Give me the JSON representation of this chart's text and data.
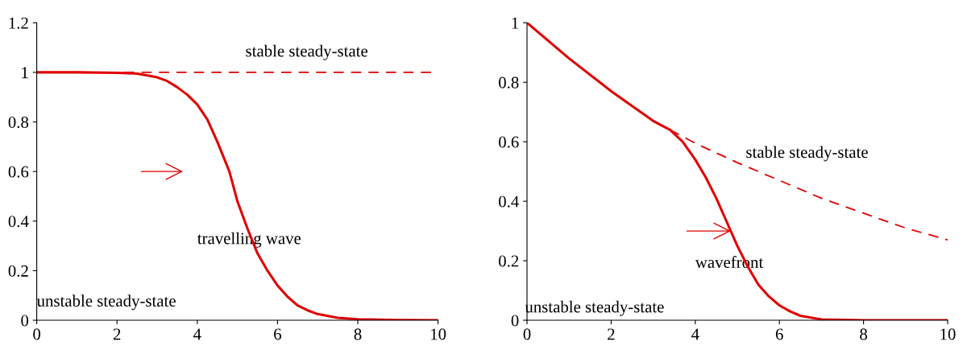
{
  "chart_data": [
    {
      "type": "line",
      "xlim": [
        0,
        10
      ],
      "ylim": [
        0,
        1.2
      ],
      "xticks": [
        0,
        2,
        4,
        6,
        8,
        10
      ],
      "yticks": [
        0,
        0.2,
        0.4,
        0.6,
        0.8,
        1,
        1.2
      ],
      "grid": false,
      "legend": false,
      "series": [
        {
          "color": "#e00000",
          "line_style": "solid",
          "x": [
            0,
            1,
            2,
            2.5,
            3,
            3.25,
            3.5,
            3.75,
            4,
            4.25,
            4.5,
            4.65,
            4.8,
            5,
            5.25,
            5.5,
            5.75,
            6,
            6.25,
            6.5,
            6.75,
            7,
            7.5,
            8,
            9,
            10
          ],
          "values": [
            1,
            1,
            0.998,
            0.995,
            0.98,
            0.965,
            0.94,
            0.91,
            0.87,
            0.81,
            0.72,
            0.66,
            0.6,
            0.48,
            0.37,
            0.27,
            0.2,
            0.14,
            0.095,
            0.06,
            0.04,
            0.025,
            0.01,
            0.004,
            0.001,
            0
          ]
        }
      ],
      "ref_lines": [
        {
          "axis": "y",
          "value": 1,
          "color": "#e00000",
          "line_style": "dashed"
        }
      ],
      "annotations": [
        "stable steady-state",
        "travelling wave",
        "unstable steady-state"
      ]
    },
    {
      "type": "line",
      "xlim": [
        0,
        10
      ],
      "ylim": [
        0,
        1
      ],
      "xticks": [
        0,
        2,
        4,
        6,
        8,
        10
      ],
      "yticks": [
        0,
        0.2,
        0.4,
        0.6,
        0.8,
        1
      ],
      "grid": false,
      "legend": false,
      "series": [
        {
          "color": "#e00000",
          "line_style": "solid",
          "x": [
            0,
            1,
            2,
            3,
            3.4,
            3.7,
            4,
            4.25,
            4.5,
            4.75,
            5,
            5.25,
            5.5,
            5.75,
            6,
            6.25,
            6.5,
            7,
            8,
            10
          ],
          "values": [
            1,
            0.88,
            0.77,
            0.67,
            0.64,
            0.6,
            0.54,
            0.48,
            0.41,
            0.33,
            0.25,
            0.18,
            0.12,
            0.08,
            0.05,
            0.03,
            0.015,
            0.003,
            0,
            0
          ]
        },
        {
          "color": "#e00000",
          "line_style": "dashed",
          "x": [
            3.4,
            4,
            5,
            6,
            7,
            8,
            9,
            10
          ],
          "values": [
            0.64,
            0.595,
            0.53,
            0.47,
            0.41,
            0.36,
            0.31,
            0.27
          ]
        }
      ],
      "annotations": [
        "stable steady-state",
        "wavefront",
        "unstable steady-state"
      ]
    }
  ]
}
